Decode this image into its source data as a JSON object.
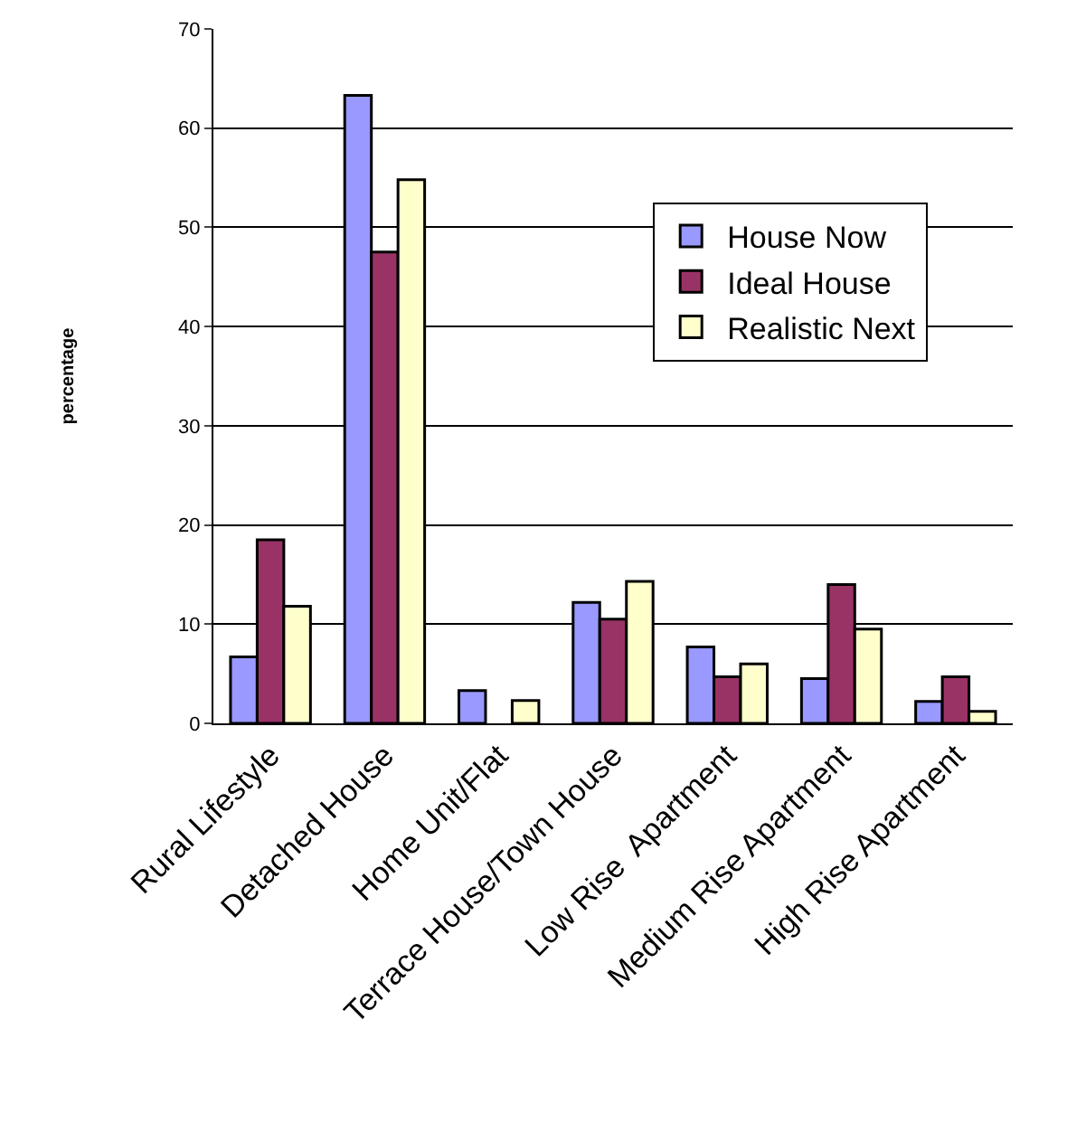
{
  "chart_data": {
    "type": "bar",
    "ylabel": "percentage",
    "categories": [
      "Rural Lifestyle",
      "Detached House",
      "Home Unit/Flat",
      "Terrace House/Town House",
      "Low Rise  Apartment",
      "Medium Rise Apartment",
      "High Rise Apartment"
    ],
    "series": [
      {
        "name": "House Now",
        "color": "#9999ff",
        "values": [
          6.7,
          63.3,
          3.3,
          12.2,
          7.7,
          4.5,
          2.2
        ]
      },
      {
        "name": "Ideal House",
        "color": "#993366",
        "values": [
          18.5,
          47.5,
          null,
          10.5,
          4.7,
          14.0,
          4.7
        ]
      },
      {
        "name": "Realistic Next",
        "color": "#ffffcc",
        "values": [
          11.8,
          54.8,
          2.3,
          14.3,
          6.0,
          9.5,
          1.2
        ]
      }
    ],
    "ylim": [
      0,
      70
    ],
    "yticks": [
      0,
      10,
      20,
      30,
      40,
      50,
      60,
      70
    ],
    "grid": "y",
    "legend": "right"
  }
}
